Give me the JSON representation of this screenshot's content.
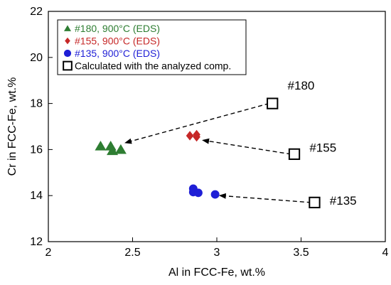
{
  "chart_data": {
    "type": "scatter",
    "xlabel": "Al in FCC-Fe, wt.%",
    "ylabel": "Cr in FCC-Fe, wt.%",
    "xlim": [
      2,
      4
    ],
    "ylim": [
      12,
      22
    ],
    "xticks": [
      2,
      2.5,
      3,
      3.5,
      4
    ],
    "yticks": [
      12,
      14,
      16,
      18,
      20,
      22
    ],
    "grid": false,
    "legend_position": "top-left",
    "series": [
      {
        "name": "#180,  900°C (EDS)",
        "marker": "triangle",
        "color": "#2e7d32",
        "points": [
          [
            2.31,
            16.15
          ],
          [
            2.37,
            16.15
          ],
          [
            2.38,
            15.95
          ],
          [
            2.43,
            16.0
          ]
        ]
      },
      {
        "name": "#155,  900°C (EDS)",
        "marker": "diamond",
        "color": "#c62828",
        "points": [
          [
            2.84,
            16.6
          ],
          [
            2.88,
            16.55
          ],
          [
            2.88,
            16.65
          ]
        ]
      },
      {
        "name": "#135,  900°C (EDS)",
        "marker": "circle",
        "color": "#1f1fd6",
        "points": [
          [
            2.86,
            14.3
          ],
          [
            2.86,
            14.15
          ],
          [
            2.89,
            14.12
          ],
          [
            2.99,
            14.05
          ]
        ]
      },
      {
        "name": "Calculated with the analyzed comp.",
        "marker": "square-open",
        "color": "#000000",
        "points": [
          [
            3.33,
            18.0
          ],
          [
            3.46,
            15.8
          ],
          [
            3.58,
            13.7
          ]
        ]
      }
    ],
    "annotations": [
      {
        "text": "#180",
        "x": 3.42,
        "y": 18.6
      },
      {
        "text": "#155",
        "x": 3.55,
        "y": 15.9
      },
      {
        "text": "#135",
        "x": 3.67,
        "y": 13.6
      }
    ],
    "arrows": [
      {
        "from": [
          3.31,
          18.0
        ],
        "to": [
          2.46,
          16.3
        ]
      },
      {
        "from": [
          3.44,
          15.8
        ],
        "to": [
          2.92,
          16.4
        ]
      },
      {
        "from": [
          3.56,
          13.7
        ],
        "to": [
          3.02,
          14.0
        ]
      }
    ]
  }
}
